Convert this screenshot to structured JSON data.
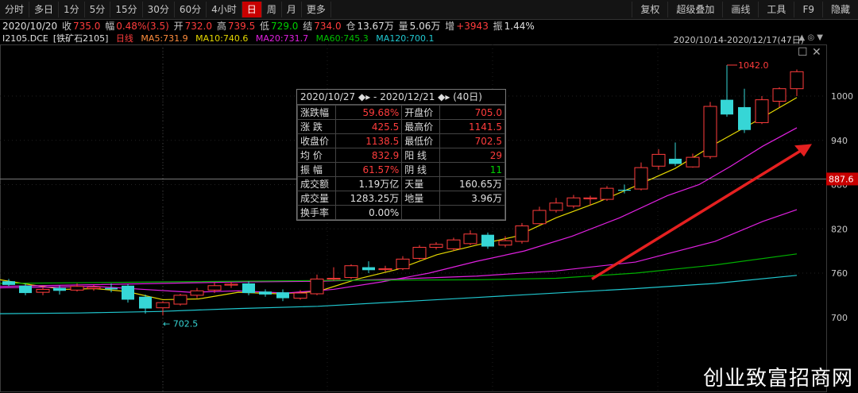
{
  "toolbar": {
    "periods": [
      "分时",
      "多日",
      "1分",
      "5分",
      "15分",
      "30分",
      "60分",
      "4小时",
      "日",
      "周",
      "月",
      "更多"
    ],
    "active_index": 8,
    "right": [
      "复权",
      "超级叠加",
      "画线",
      "工具",
      "F9",
      "隐藏"
    ]
  },
  "quote": {
    "date": "2020/10/20",
    "close_label": "收",
    "close": "735.0",
    "change_label": "幅",
    "change": "0.48%(3.5)",
    "open_label": "开",
    "open": "732.0",
    "high_label": "高",
    "high": "739.5",
    "low_label": "低",
    "low": "729.0",
    "settle_label": "结",
    "settle": "734.0",
    "oi_label": "仓",
    "oi": "13.67万",
    "vol_label": "量",
    "vol": "5.06万",
    "inc_label": "增",
    "inc": "+3943",
    "amp_label": "振",
    "amp": "1.44%"
  },
  "ma": {
    "symbol": "I2105.DCE",
    "name": "[铁矿石2105]",
    "period": "日线",
    "ma5": "MA5:731.9",
    "ma10": "MA10:740.6",
    "ma20": "MA20:731.7",
    "ma60": "MA60:745.3",
    "ma120": "MA120:700.1",
    "range": "2020/10/14-2020/12/17(47日)"
  },
  "colors": {
    "up": "#ff3c3c",
    "down": "#36d6d6",
    "ma5": "#ffffff",
    "ma10": "#e5d800",
    "ma20": "#e020e0",
    "ma60": "#00b000",
    "ma120": "#20c8d0",
    "arrow": "#e52020"
  },
  "axis": {
    "labels": [
      "1000",
      "940",
      "880",
      "820",
      "760",
      "700"
    ],
    "current": "887.6"
  },
  "annotations": {
    "high": "1042.0",
    "low": "702.5"
  },
  "popup": {
    "range": "2020/10/27 ◆▸ - 2020/12/21 ◆▸",
    "days": "(40日)",
    "rows": [
      [
        "涨跌幅",
        "59.68%",
        "开盘价",
        "705.0"
      ],
      [
        "涨  跌",
        "425.5",
        "最高价",
        "1141.5"
      ],
      [
        "收盘价",
        "1138.5",
        "最低价",
        "702.5"
      ],
      [
        "均  价",
        "832.9",
        "阳  线",
        "29"
      ],
      [
        "振  幅",
        "61.57%",
        "阴  线",
        "11"
      ],
      [
        "成交额",
        "1.19万亿",
        "天量",
        "160.65万"
      ],
      [
        "成交量",
        "1283.25万",
        "地量",
        "3.96万"
      ],
      [
        "换手率",
        "0.00%",
        "",
        ""
      ]
    ]
  },
  "watermark": "创业致富招商网"
}
